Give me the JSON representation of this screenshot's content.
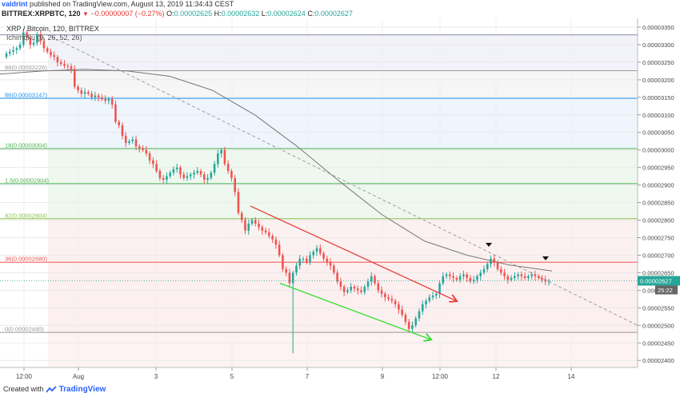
{
  "header": {
    "author": "valdrint",
    "published_text": "published on TradingView.com, August 13, 2019 11:34:43 CEST"
  },
  "symbol_bar": {
    "symbol": "BITTREX:XRPBTC, 120",
    "change": "−0.00000007 (−0.27%)",
    "open_label": "O:",
    "open": "0.00002625",
    "high_label": "H:",
    "high": "0.00002632",
    "low_label": "L:",
    "low": "0.00002624",
    "close_label": "C:",
    "close": "0.00002627",
    "last_value": "0.00002627"
  },
  "legend": {
    "title": "XRP / Bitcoin, 120, BITTREX",
    "indicator": "Ichimoku (9, 26, 52, 26)"
  },
  "footer": {
    "created_with": "Created with",
    "brand": "TradingView"
  },
  "colors": {
    "up": "#26a69a",
    "down": "#ef5350",
    "ma": "#777777",
    "red_channel": "#e53935",
    "green_channel": "#33dd33",
    "countdown_bg": "#666666"
  },
  "chart_data": {
    "type": "candlestick",
    "title": "XRP / Bitcoin, 120, BITTREX",
    "xlabel": "",
    "ylabel": "",
    "ylim": [
      2.38e-05,
      3.375e-05
    ],
    "x_tick_labels": [
      "12:00",
      "Aug",
      "3",
      "5",
      "7",
      "9",
      "12:00",
      "12",
      "14"
    ],
    "y_tick_labels": [
      "0.00003350",
      "0.00003300",
      "0.00003250",
      "0.00003200",
      "0.00003150",
      "0.00003100",
      "0.00003050",
      "0.00003000",
      "0.00002950",
      "0.00002900",
      "0.00002850",
      "0.00002800",
      "0.00002750",
      "0.00002700",
      "0.00002650",
      "0.00002600",
      "0.00002550",
      "0.00002500",
      "0.00002450",
      "0.00002400"
    ],
    "price_tag": "0.00002627",
    "price_tag_value": 2.627e-05,
    "countdown": "25:22",
    "fib_levels": [
      {
        "label": "1(0.00003328)",
        "value": 3.328e-05,
        "color": "#8a8aa8",
        "fill": "#f2f2fb"
      },
      {
        "label": "0.786(0.00003226)",
        "display": "88(0.00003226)",
        "value": 3.226e-05,
        "color": "#9b9b9b",
        "fill": "#f6f6f6"
      },
      {
        "label": "0.618(0.00003147)",
        "display": "86(0.00003147)",
        "value": 3.147e-05,
        "color": "#2196f3",
        "fill": "#eef5fc"
      },
      {
        "label": "0.5(0.00003004)",
        "display": "18(0.00003004)",
        "value": 3.004e-05,
        "color": "#4caf50",
        "fill": "#eef8ee"
      },
      {
        "label": "0.382(0.00002904)",
        "display": "1.5(0.00002904)",
        "value": 2.904e-05,
        "color": "#4caf50",
        "fill": "#eef8ee"
      },
      {
        "label": "0.236(0.00002804)",
        "display": "82(0.00002804)",
        "value": 2.804e-05,
        "color": "#8bc34a",
        "fill": "#fbf1f1"
      },
      {
        "label": "0.136(0.00002680)",
        "display": "36(0.00002680)",
        "value": 2.68e-05,
        "color": "#ef5350",
        "fill": "#fcefef"
      },
      {
        "label": "0(0.00002480)",
        "display": "0(0.00002480)",
        "value": 2.48e-05,
        "color": "#999999",
        "fill": "#ffffff"
      }
    ],
    "candle_closes": [
      3.275e-05,
      3.28e-05,
      3.285e-05,
      3.29e-05,
      3.3e-05,
      3.335e-05,
      3.32e-05,
      3.3e-05,
      3.305e-05,
      3.33e-05,
      3.31e-05,
      3.29e-05,
      3.28e-05,
      3.27e-05,
      3.265e-05,
      3.25e-05,
      3.245e-05,
      3.24e-05,
      3.238e-05,
      3.23e-05,
      3.18e-05,
      3.17e-05,
      3.16e-05,
      3.165e-05,
      3.16e-05,
      3.15e-05,
      3.155e-05,
      3.15e-05,
      3.145e-05,
      3.14e-05,
      3.145e-05,
      3.13e-05,
      3.08e-05,
      3.07e-05,
      3.04e-05,
      3.02e-05,
      3.025e-05,
      3.03e-05,
      3.01e-05,
      3.005e-05,
      3e-05,
      2.99e-05,
      2.97e-05,
      2.96e-05,
      2.94e-05,
      2.92e-05,
      2.915e-05,
      2.925e-05,
      2.935e-05,
      2.945e-05,
      2.95e-05,
      2.93e-05,
      2.92e-05,
      2.925e-05,
      2.93e-05,
      2.935e-05,
      2.94e-05,
      2.93e-05,
      2.915e-05,
      2.92e-05,
      2.935e-05,
      2.96e-05,
      2.99e-05,
      3e-05,
      2.96e-05,
      2.94e-05,
      2.92e-05,
      2.88e-05,
      2.82e-05,
      2.8e-05,
      2.77e-05,
      2.79e-05,
      2.8e-05,
      2.79e-05,
      2.78e-05,
      2.77e-05,
      2.765e-05,
      2.755e-05,
      2.745e-05,
      2.73e-05,
      2.7e-05,
      2.66e-05,
      2.65e-05,
      2.62e-05,
      2.65e-05,
      2.67e-05,
      2.69e-05,
      2.69e-05,
      2.68e-05,
      2.7e-05,
      2.71e-05,
      2.72e-05,
      2.705e-05,
      2.69e-05,
      2.68e-05,
      2.67e-05,
      2.65e-05,
      2.625e-05,
      2.61e-05,
      2.595e-05,
      2.6e-05,
      2.61e-05,
      2.605e-05,
      2.6e-05,
      2.595e-05,
      2.61e-05,
      2.625e-05,
      2.64e-05,
      2.62e-05,
      2.6e-05,
      2.59e-05,
      2.58e-05,
      2.575e-05,
      2.57e-05,
      2.56e-05,
      2.545e-05,
      2.53e-05,
      2.51e-05,
      2.49e-05,
      2.5e-05,
      2.52e-05,
      2.54e-05,
      2.56e-05,
      2.57e-05,
      2.58e-05,
      2.585e-05,
      2.59e-05,
      2.62e-05,
      2.64e-05,
      2.645e-05,
      2.64e-05,
      2.635e-05,
      2.63e-05,
      2.64e-05,
      2.645e-05,
      2.635e-05,
      2.625e-05,
      2.63e-05,
      2.64e-05,
      2.65e-05,
      2.66e-05,
      2.675e-05,
      2.69e-05,
      2.68e-05,
      2.66e-05,
      2.65e-05,
      2.64e-05,
      2.63e-05,
      2.635e-05,
      2.64e-05,
      2.645e-05,
      2.64e-05,
      2.635e-05,
      2.64e-05,
      2.645e-05,
      2.64e-05,
      2.635e-05,
      2.63e-05,
      2.625e-05,
      2.627e-05
    ],
    "moving_average": [
      3.216e-05,
      3.225e-05,
      3.23e-05,
      3.225e-05,
      3.21e-05,
      3.17e-05,
      3.1e-05,
      3.01e-05,
      2.91e-05,
      2.815e-05,
      2.74e-05,
      2.7e-05,
      2.672e-05,
      2.655e-05
    ],
    "red_channel": {
      "from": 2.84e-05,
      "to": 2.57e-05
    },
    "green_channel": {
      "from": 2.62e-05,
      "to": 2.46e-05
    },
    "dashed_trendline": {
      "from": 3.33e-05,
      "to": 2.5e-05
    }
  }
}
